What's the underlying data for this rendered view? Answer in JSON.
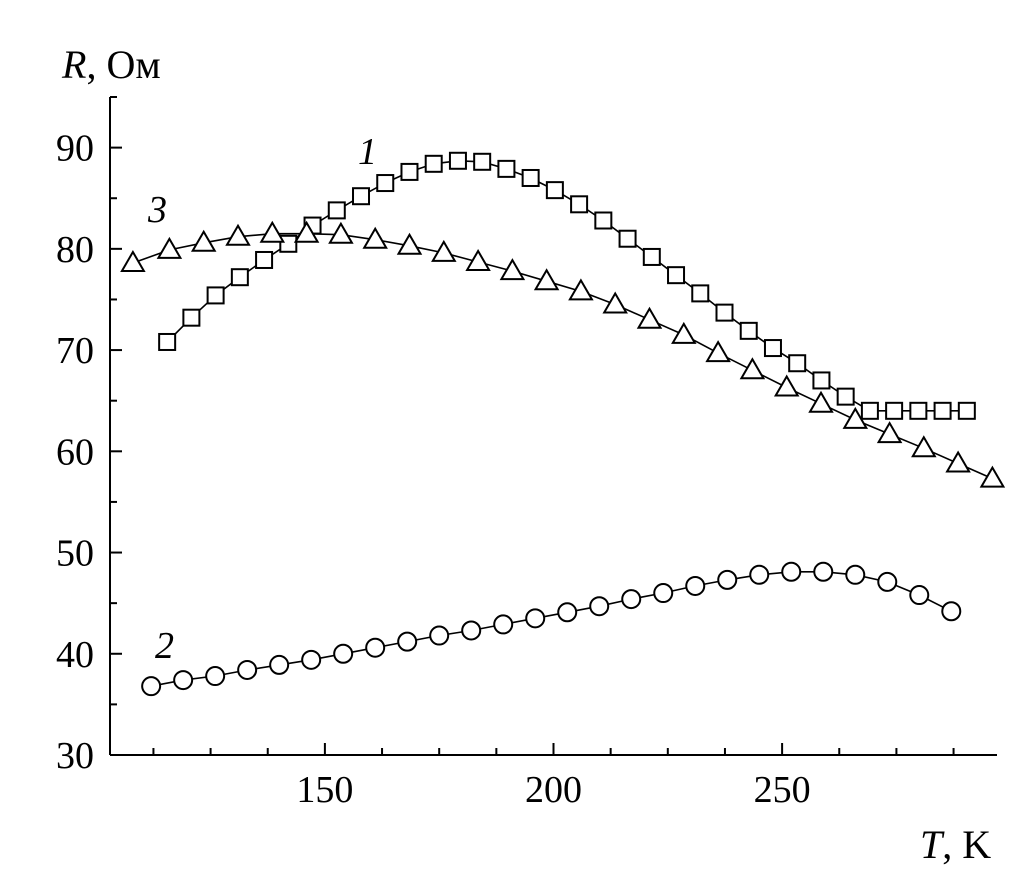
{
  "chart_data": {
    "type": "scatter",
    "title": "",
    "xlabel_symbol": "T",
    "xlabel_unit": ", K",
    "ylabel_symbol": "R",
    "ylabel_unit": ", Ом",
    "xlim": [
      103,
      297
    ],
    "ylim": [
      30,
      95
    ],
    "x_ticks": [
      150,
      200,
      250
    ],
    "y_ticks": [
      30,
      40,
      50,
      60,
      70,
      80,
      90
    ],
    "grid": false,
    "series": [
      {
        "name": "1",
        "marker": "square",
        "x": [
          115.5,
          120.8,
          126.1,
          131.4,
          136.7,
          142.0,
          147.3,
          152.6,
          157.9,
          163.2,
          168.5,
          173.8,
          179.1,
          184.4,
          189.7,
          195.0,
          200.3,
          205.6,
          210.9,
          216.2,
          221.5,
          226.8,
          232.1,
          237.4,
          242.7,
          248.0,
          253.3,
          258.6,
          263.9,
          269.2,
          274.5,
          279.8,
          285.1,
          290.4
        ],
        "y": [
          70.8,
          73.2,
          75.4,
          77.2,
          78.9,
          80.5,
          82.3,
          83.8,
          85.2,
          86.5,
          87.6,
          88.4,
          88.7,
          88.6,
          87.9,
          87.0,
          85.8,
          84.4,
          82.8,
          81.0,
          79.2,
          77.4,
          75.6,
          73.7,
          71.9,
          70.2,
          68.7,
          67.0,
          65.4,
          64.0,
          64.0,
          64.0,
          64.0,
          64.0
        ]
      },
      {
        "name": "2",
        "marker": "circle",
        "x": [
          112,
          119,
          126,
          133,
          140,
          147,
          154,
          161,
          168,
          175,
          182,
          189,
          196,
          203,
          210,
          217,
          224,
          231,
          238,
          245,
          252,
          259,
          266,
          273,
          280,
          287
        ],
        "y": [
          36.8,
          37.4,
          37.8,
          38.4,
          38.9,
          39.4,
          40.0,
          40.6,
          41.2,
          41.8,
          42.3,
          42.9,
          43.5,
          44.1,
          44.7,
          45.4,
          46.0,
          46.7,
          47.3,
          47.8,
          48.1,
          48.1,
          47.8,
          47.1,
          45.8,
          44.2
        ]
      },
      {
        "name": "3",
        "marker": "triangle",
        "x": [
          108,
          116,
          123.5,
          131,
          138.5,
          146,
          153.5,
          161,
          168.5,
          176,
          183.5,
          191,
          198.5,
          206,
          213.5,
          221,
          228.5,
          236,
          243.5,
          251,
          258.5,
          266,
          273.5,
          281,
          288.5,
          296
        ],
        "y": [
          78.6,
          79.9,
          80.6,
          81.2,
          81.5,
          81.5,
          81.4,
          80.9,
          80.3,
          79.6,
          78.7,
          77.8,
          76.8,
          75.8,
          74.5,
          73.0,
          71.5,
          69.7,
          68.0,
          66.3,
          64.7,
          63.1,
          61.7,
          60.3,
          58.8,
          57.3
        ]
      }
    ]
  }
}
